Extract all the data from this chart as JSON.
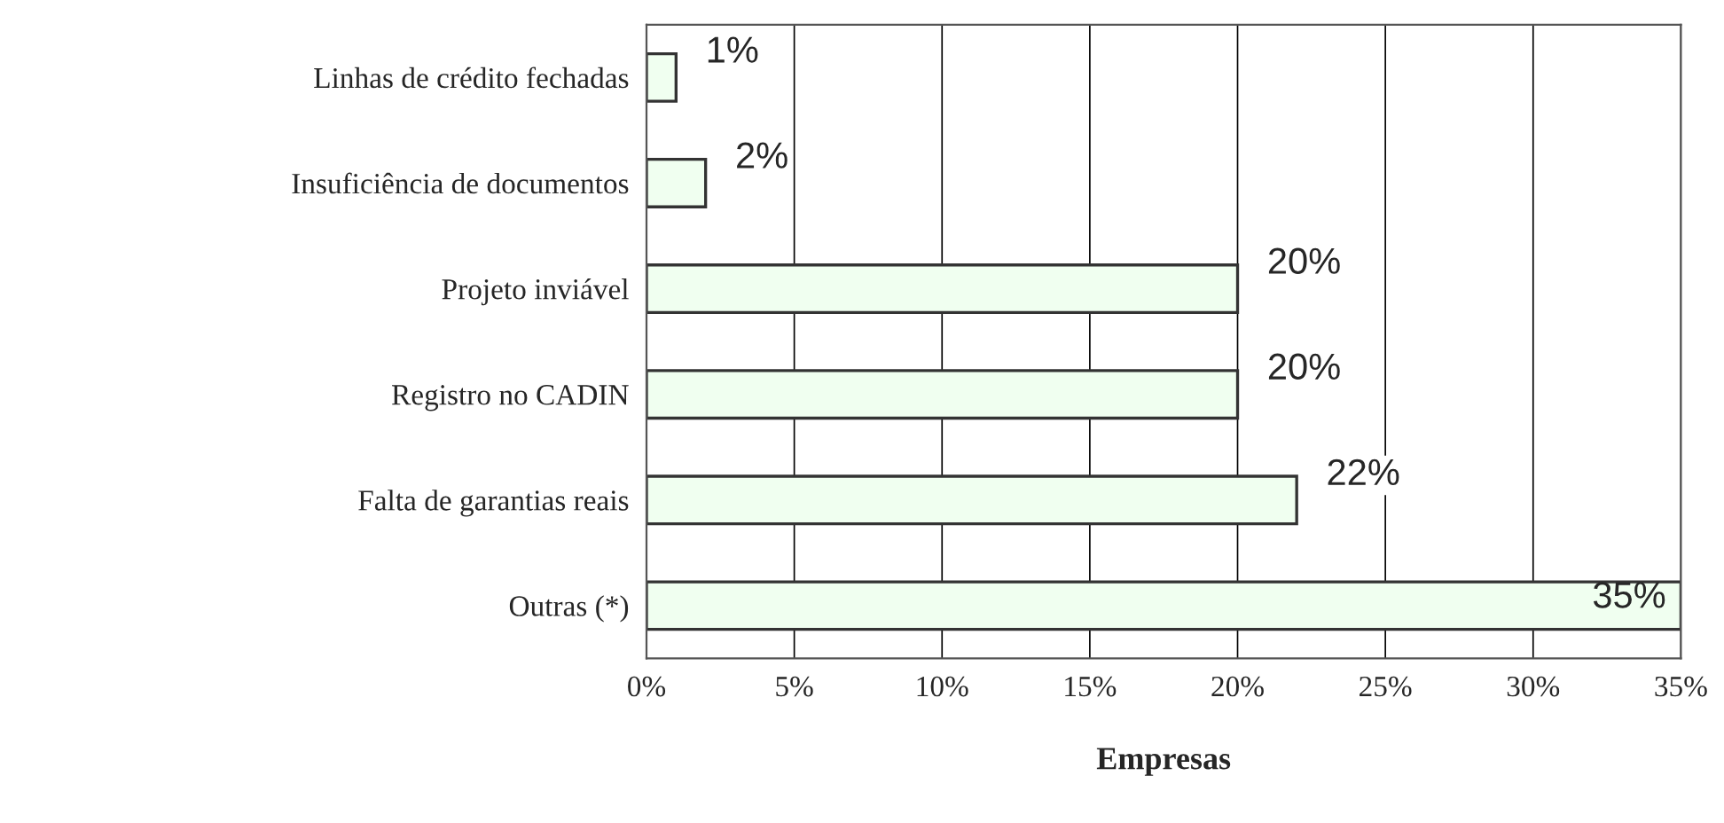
{
  "chart_data": {
    "type": "bar",
    "orientation": "horizontal",
    "xlabel": "Empresas",
    "categories": [
      "Linhas de crédito fechadas",
      "Insuficiência de documentos",
      "Projeto inviável",
      "Registro no CADIN",
      "Falta de garantias reais",
      "Outras (*)"
    ],
    "values": [
      1,
      2,
      20,
      20,
      22,
      35
    ],
    "value_labels": [
      "1%",
      "2%",
      "20%",
      "20%",
      "22%",
      "35%"
    ],
    "color": "#f0fff0",
    "xlim": [
      0,
      35
    ],
    "xticks": [
      {
        "value": 0,
        "label": "0%"
      },
      {
        "value": 5,
        "label": "5%"
      },
      {
        "value": 10,
        "label": "10%"
      },
      {
        "value": 15,
        "label": "15%"
      },
      {
        "value": 20,
        "label": "20%"
      },
      {
        "value": 25,
        "label": "25%"
      },
      {
        "value": 30,
        "label": "30%"
      },
      {
        "value": 35,
        "label": "35%"
      }
    ],
    "grid": "x",
    "legend": false
  }
}
